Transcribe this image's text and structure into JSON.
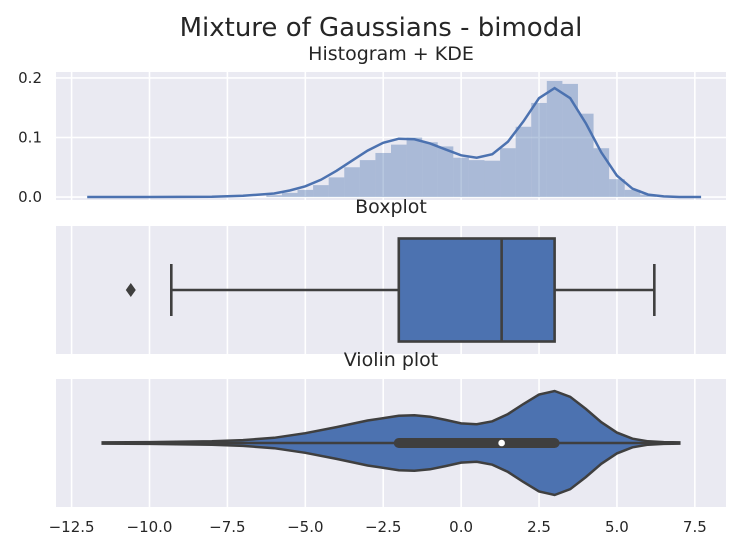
{
  "figure": {
    "title": "Mixture of Gaussians - bimodal"
  },
  "colors": {
    "axes_bg": "#eaeaf2",
    "grid": "#ffffff",
    "series": "#4c72b0",
    "hist_fill": "#4c72b0",
    "edge": "#3f3f3f",
    "median_dot": "#ffffff"
  },
  "chart_data": [
    {
      "type": "histogram",
      "title": "Histogram + KDE",
      "grid": true,
      "xlim": [
        -13.0,
        8.5
      ],
      "ylim": [
        -0.005,
        0.21
      ],
      "yticks": [
        0.0,
        0.1,
        0.2
      ],
      "ytick_labels": [
        "0.0",
        "0.1",
        "0.2"
      ],
      "bin_width": 0.5,
      "bins": [
        {
          "x": -6.0,
          "y": 0.003
        },
        {
          "x": -5.5,
          "y": 0.007
        },
        {
          "x": -5.0,
          "y": 0.012
        },
        {
          "x": -4.5,
          "y": 0.02
        },
        {
          "x": -4.0,
          "y": 0.033
        },
        {
          "x": -3.5,
          "y": 0.05
        },
        {
          "x": -3.0,
          "y": 0.062
        },
        {
          "x": -2.5,
          "y": 0.074
        },
        {
          "x": -2.0,
          "y": 0.088
        },
        {
          "x": -1.5,
          "y": 0.1
        },
        {
          "x": -1.0,
          "y": 0.092
        },
        {
          "x": -0.5,
          "y": 0.085
        },
        {
          "x": 0.0,
          "y": 0.066
        },
        {
          "x": 0.5,
          "y": 0.062
        },
        {
          "x": 1.0,
          "y": 0.061
        },
        {
          "x": 1.5,
          "y": 0.082
        },
        {
          "x": 2.0,
          "y": 0.118
        },
        {
          "x": 2.5,
          "y": 0.158
        },
        {
          "x": 3.0,
          "y": 0.195
        },
        {
          "x": 3.5,
          "y": 0.19
        },
        {
          "x": 4.0,
          "y": 0.14
        },
        {
          "x": 4.5,
          "y": 0.082
        },
        {
          "x": 5.0,
          "y": 0.03
        },
        {
          "x": 5.5,
          "y": 0.012
        },
        {
          "x": 6.0,
          "y": 0.004
        }
      ],
      "kde": {
        "x": [
          -12.0,
          -10.0,
          -8.0,
          -7.0,
          -6.0,
          -5.5,
          -5.0,
          -4.5,
          -4.0,
          -3.5,
          -3.0,
          -2.5,
          -2.0,
          -1.5,
          -1.0,
          -0.5,
          0.0,
          0.5,
          1.0,
          1.5,
          2.0,
          2.5,
          3.0,
          3.5,
          4.0,
          4.5,
          5.0,
          5.5,
          6.0,
          6.5,
          7.0,
          7.7
        ],
        "y": [
          0.0,
          0.0,
          0.0005,
          0.002,
          0.006,
          0.011,
          0.018,
          0.029,
          0.044,
          0.061,
          0.078,
          0.091,
          0.098,
          0.097,
          0.09,
          0.08,
          0.07,
          0.066,
          0.072,
          0.093,
          0.127,
          0.166,
          0.183,
          0.166,
          0.124,
          0.075,
          0.036,
          0.014,
          0.004,
          0.001,
          0.0,
          0.0
        ]
      }
    },
    {
      "type": "boxplot",
      "title": "Boxplot",
      "grid": true,
      "xlim": [
        -13.0,
        8.5
      ],
      "q1": -2.0,
      "median": 1.3,
      "q3": 3.0,
      "whisker_low": -9.3,
      "whisker_high": 6.2,
      "outliers": [
        -10.6
      ]
    },
    {
      "type": "violin",
      "title": "Violin plot",
      "grid": true,
      "xlim": [
        -13.0,
        8.5
      ],
      "xticks": [
        -12.5,
        -10.0,
        -7.5,
        -5.0,
        -2.5,
        0.0,
        2.5,
        5.0,
        7.5
      ],
      "xtick_labels": [
        "−12.5",
        "−10.0",
        "−7.5",
        "−5.0",
        "−2.5",
        "0.0",
        "2.5",
        "5.0",
        "7.5"
      ],
      "density": {
        "x": [
          -11.5,
          -10.0,
          -8.0,
          -7.0,
          -6.0,
          -5.0,
          -4.0,
          -3.0,
          -2.0,
          -1.5,
          -1.0,
          -0.5,
          0.0,
          0.5,
          1.0,
          1.5,
          2.0,
          2.5,
          3.0,
          3.5,
          4.0,
          4.5,
          5.0,
          5.5,
          6.0,
          6.5,
          7.0
        ],
        "y": [
          0.002,
          0.003,
          0.006,
          0.01,
          0.018,
          0.034,
          0.055,
          0.078,
          0.094,
          0.096,
          0.091,
          0.08,
          0.068,
          0.065,
          0.075,
          0.1,
          0.135,
          0.168,
          0.18,
          0.16,
          0.118,
          0.072,
          0.036,
          0.015,
          0.006,
          0.003,
          0.002
        ]
      },
      "q1": -2.0,
      "median": 1.3,
      "q3": 3.0,
      "whisker_low": -11.5,
      "whisker_high": 7.0
    }
  ]
}
